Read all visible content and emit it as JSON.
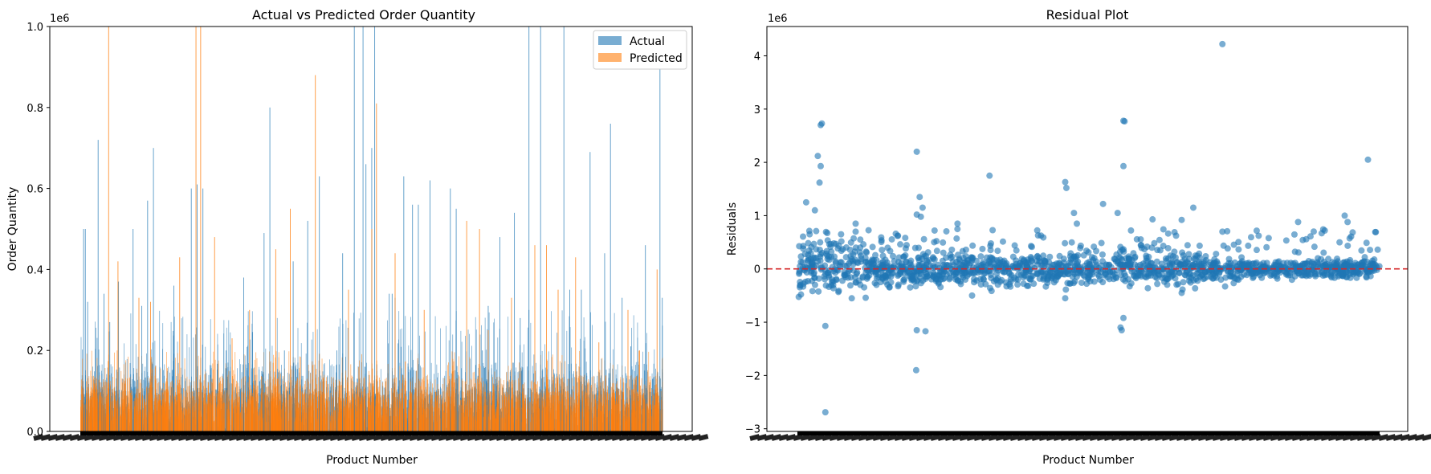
{
  "chart_data": [
    {
      "type": "bar",
      "title": "Actual vs Predicted Order Quantity",
      "xlabel": "Product Number",
      "ylabel": "Order Quantity",
      "offset_label": "1e6",
      "ylim": [
        0,
        1.0
      ],
      "yticks": [
        0.0,
        0.2,
        0.4,
        0.6,
        0.8,
        1.0
      ],
      "legend_position": "top-right",
      "grid": false,
      "x_tick_labels_note": "dense overlapping product-number tick labels (illegible)",
      "series": [
        {
          "name": "Actual",
          "color": "#1f77b4",
          "spikes": [
            {
              "x": 0.005,
              "v": 0.5
            },
            {
              "x": 0.008,
              "v": 0.5
            },
            {
              "x": 0.012,
              "v": 0.32
            },
            {
              "x": 0.03,
              "v": 0.72
            },
            {
              "x": 0.04,
              "v": 0.34
            },
            {
              "x": 0.05,
              "v": 0.27
            },
            {
              "x": 0.065,
              "v": 0.37
            },
            {
              "x": 0.09,
              "v": 0.5
            },
            {
              "x": 0.105,
              "v": 0.31
            },
            {
              "x": 0.115,
              "v": 0.57
            },
            {
              "x": 0.125,
              "v": 0.7
            },
            {
              "x": 0.16,
              "v": 0.36
            },
            {
              "x": 0.19,
              "v": 0.6
            },
            {
              "x": 0.2,
              "v": 0.61
            },
            {
              "x": 0.21,
              "v": 0.6
            },
            {
              "x": 0.25,
              "v": 0.2
            },
            {
              "x": 0.28,
              "v": 0.38
            },
            {
              "x": 0.315,
              "v": 0.49
            },
            {
              "x": 0.325,
              "v": 0.8
            },
            {
              "x": 0.35,
              "v": 0.2
            },
            {
              "x": 0.365,
              "v": 0.42
            },
            {
              "x": 0.39,
              "v": 0.52
            },
            {
              "x": 0.41,
              "v": 0.63
            },
            {
              "x": 0.44,
              "v": 0.2
            },
            {
              "x": 0.45,
              "v": 0.44
            },
            {
              "x": 0.47,
              "v": 1.0
            },
            {
              "x": 0.485,
              "v": 1.0
            },
            {
              "x": 0.49,
              "v": 0.66
            },
            {
              "x": 0.5,
              "v": 0.7
            },
            {
              "x": 0.505,
              "v": 1.0
            },
            {
              "x": 0.53,
              "v": 0.34
            },
            {
              "x": 0.535,
              "v": 0.34
            },
            {
              "x": 0.54,
              "v": 0.33
            },
            {
              "x": 0.555,
              "v": 0.63
            },
            {
              "x": 0.57,
              "v": 0.56
            },
            {
              "x": 0.58,
              "v": 0.56
            },
            {
              "x": 0.6,
              "v": 0.62
            },
            {
              "x": 0.635,
              "v": 0.6
            },
            {
              "x": 0.645,
              "v": 0.55
            },
            {
              "x": 0.69,
              "v": 0.2
            },
            {
              "x": 0.7,
              "v": 0.31
            },
            {
              "x": 0.72,
              "v": 0.48
            },
            {
              "x": 0.745,
              "v": 0.54
            },
            {
              "x": 0.755,
              "v": 0.28
            },
            {
              "x": 0.77,
              "v": 0.3
            },
            {
              "x": 0.77,
              "v": 1.0
            },
            {
              "x": 0.79,
              "v": 1.0
            },
            {
              "x": 0.83,
              "v": 1.0
            },
            {
              "x": 0.84,
              "v": 0.35
            },
            {
              "x": 0.86,
              "v": 0.35
            },
            {
              "x": 0.875,
              "v": 0.69
            },
            {
              "x": 0.9,
              "v": 0.44
            },
            {
              "x": 0.91,
              "v": 0.76
            },
            {
              "x": 0.93,
              "v": 0.33
            },
            {
              "x": 0.945,
              "v": 0.21
            },
            {
              "x": 0.97,
              "v": 0.46
            },
            {
              "x": 0.995,
              "v": 0.95
            },
            {
              "x": 0.999,
              "v": 0.33
            }
          ]
        },
        {
          "name": "Predicted",
          "color": "#ff7f0e",
          "spikes": [
            {
              "x": 0.048,
              "v": 1.0
            },
            {
              "x": 0.064,
              "v": 0.42
            },
            {
              "x": 0.1,
              "v": 0.33
            },
            {
              "x": 0.12,
              "v": 0.32
            },
            {
              "x": 0.17,
              "v": 0.43
            },
            {
              "x": 0.198,
              "v": 1.0
            },
            {
              "x": 0.206,
              "v": 1.0
            },
            {
              "x": 0.23,
              "v": 0.48
            },
            {
              "x": 0.26,
              "v": 0.23
            },
            {
              "x": 0.29,
              "v": 0.3
            },
            {
              "x": 0.335,
              "v": 0.45
            },
            {
              "x": 0.36,
              "v": 0.55
            },
            {
              "x": 0.403,
              "v": 0.88
            },
            {
              "x": 0.46,
              "v": 0.35
            },
            {
              "x": 0.5,
              "v": 0.5
            },
            {
              "x": 0.508,
              "v": 0.81
            },
            {
              "x": 0.54,
              "v": 0.44
            },
            {
              "x": 0.59,
              "v": 0.3
            },
            {
              "x": 0.663,
              "v": 0.52
            },
            {
              "x": 0.685,
              "v": 0.5
            },
            {
              "x": 0.7,
              "v": 0.25
            },
            {
              "x": 0.74,
              "v": 0.33
            },
            {
              "x": 0.78,
              "v": 0.46
            },
            {
              "x": 0.8,
              "v": 0.46
            },
            {
              "x": 0.82,
              "v": 0.35
            },
            {
              "x": 0.85,
              "v": 0.43
            },
            {
              "x": 0.89,
              "v": 0.22
            },
            {
              "x": 0.94,
              "v": 0.3
            },
            {
              "x": 0.96,
              "v": 0.2
            },
            {
              "x": 0.99,
              "v": 0.4
            }
          ]
        }
      ]
    },
    {
      "type": "scatter",
      "title": "Residual Plot",
      "xlabel": "Product Number",
      "ylabel": "Residuals",
      "offset_label": "1e6",
      "ylim": [
        -3.05,
        4.55
      ],
      "yticks": [
        -3,
        -2,
        -1,
        0,
        1,
        2,
        3,
        4
      ],
      "reference_line": {
        "y": 0,
        "color": "#d62728",
        "style": "dashed"
      },
      "grid": false,
      "x_tick_labels_note": "dense overlapping product-number tick labels (illegible)",
      "point_color": "#1f77b4",
      "outliers": [
        {
          "x": 0.01,
          "y": 0.38
        },
        {
          "x": 0.015,
          "y": 1.25
        },
        {
          "x": 0.03,
          "y": 1.1
        },
        {
          "x": 0.035,
          "y": 2.12
        },
        {
          "x": 0.038,
          "y": 1.62
        },
        {
          "x": 0.04,
          "y": 2.7
        },
        {
          "x": 0.042,
          "y": 2.73
        },
        {
          "x": 0.04,
          "y": 1.93
        },
        {
          "x": 0.048,
          "y": -1.07
        },
        {
          "x": 0.048,
          "y": -2.69
        },
        {
          "x": 0.021,
          "y": 0.65
        },
        {
          "x": 0.075,
          "y": 0.65
        },
        {
          "x": 0.1,
          "y": 0.85
        },
        {
          "x": 0.1,
          "y": 0.7
        },
        {
          "x": 0.205,
          "y": 2.2
        },
        {
          "x": 0.205,
          "y": 1.02
        },
        {
          "x": 0.21,
          "y": 1.35
        },
        {
          "x": 0.215,
          "y": 1.15
        },
        {
          "x": 0.212,
          "y": 0.98
        },
        {
          "x": 0.205,
          "y": -1.15
        },
        {
          "x": 0.22,
          "y": -1.17
        },
        {
          "x": 0.204,
          "y": -1.9
        },
        {
          "x": 0.275,
          "y": 0.85
        },
        {
          "x": 0.33,
          "y": 1.75
        },
        {
          "x": 0.46,
          "y": 1.63
        },
        {
          "x": 0.462,
          "y": 1.52
        },
        {
          "x": 0.475,
          "y": 1.05
        },
        {
          "x": 0.48,
          "y": 0.85
        },
        {
          "x": 0.525,
          "y": 1.22
        },
        {
          "x": 0.55,
          "y": 1.05
        },
        {
          "x": 0.56,
          "y": 2.78
        },
        {
          "x": 0.562,
          "y": 2.77
        },
        {
          "x": 0.56,
          "y": 1.93
        },
        {
          "x": 0.555,
          "y": -1.1
        },
        {
          "x": 0.557,
          "y": -1.15
        },
        {
          "x": 0.56,
          "y": -0.92
        },
        {
          "x": 0.61,
          "y": 0.93
        },
        {
          "x": 0.66,
          "y": 0.92
        },
        {
          "x": 0.68,
          "y": 1.15
        },
        {
          "x": 0.73,
          "y": 4.22
        },
        {
          "x": 0.73,
          "y": 0.7
        },
        {
          "x": 0.86,
          "y": 0.88
        },
        {
          "x": 0.94,
          "y": 1.0
        },
        {
          "x": 0.945,
          "y": 0.88
        },
        {
          "x": 0.98,
          "y": 2.05
        },
        {
          "x": 0.66,
          "y": -0.45
        },
        {
          "x": 0.46,
          "y": -0.55
        },
        {
          "x": 0.3,
          "y": -0.5
        }
      ]
    }
  ]
}
